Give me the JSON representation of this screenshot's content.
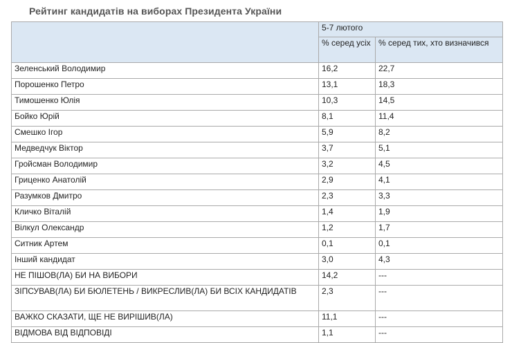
{
  "page": {
    "title": "Рейтинг кандидатів на виборах Президента України"
  },
  "table": {
    "period_header": "5-7 лютого",
    "col_all_header": "% серед усіх",
    "col_decided_header": "% серед тих, хто визначився",
    "rows": [
      {
        "name": "Зеленський Володимир",
        "all": "16,2",
        "decided": "22,7"
      },
      {
        "name": "Порошенко Петро",
        "all": "13,1",
        "decided": "18,3"
      },
      {
        "name": "Тимошенко Юлія",
        "all": "10,3",
        "decided": "14,5"
      },
      {
        "name": "Бойко Юрій",
        "all": "8,1",
        "decided": "11,4"
      },
      {
        "name": "Смешко Ігор",
        "all": "5,9",
        "decided": "8,2"
      },
      {
        "name": "Медведчук Віктор",
        "all": "3,7",
        "decided": "5,1"
      },
      {
        "name": "Гройсман Володимир",
        "all": "3,2",
        "decided": "4,5"
      },
      {
        "name": "Гриценко Анатолій",
        "all": "2,9",
        "decided": "4,1"
      },
      {
        "name": "Разумков Дмитро",
        "all": "2,3",
        "decided": "3,3"
      },
      {
        "name": "Кличко Віталій",
        "all": "1,4",
        "decided": "1,9"
      },
      {
        "name": "Вілкул Олександр",
        "all": "1,2",
        "decided": "1,7"
      },
      {
        "name": "Ситник Артем",
        "all": "0,1",
        "decided": "0,1"
      },
      {
        "name": "Інший кандидат",
        "all": "3,0",
        "decided": "4,3"
      },
      {
        "name": "НЕ ПІШОВ(ЛА) БИ НА ВИБОРИ",
        "all": "14,2",
        "decided": "---"
      },
      {
        "name": "ЗІПСУВАВ(ЛА) БИ БЮЛЕТЕНЬ / ВИКРЕСЛИВ(ЛА) БИ ВСІХ КАНДИДАТІВ",
        "all": "2,3",
        "decided": "---"
      },
      {
        "name": "ВАЖКО СКАЗАТИ, ЩЕ НЕ ВИРІШИВ(ЛА)",
        "all": "11,1",
        "decided": "---"
      },
      {
        "name": "ВІДМОВА ВІД ВІДПОВІДІ",
        "all": "1,1",
        "decided": "---"
      }
    ]
  }
}
